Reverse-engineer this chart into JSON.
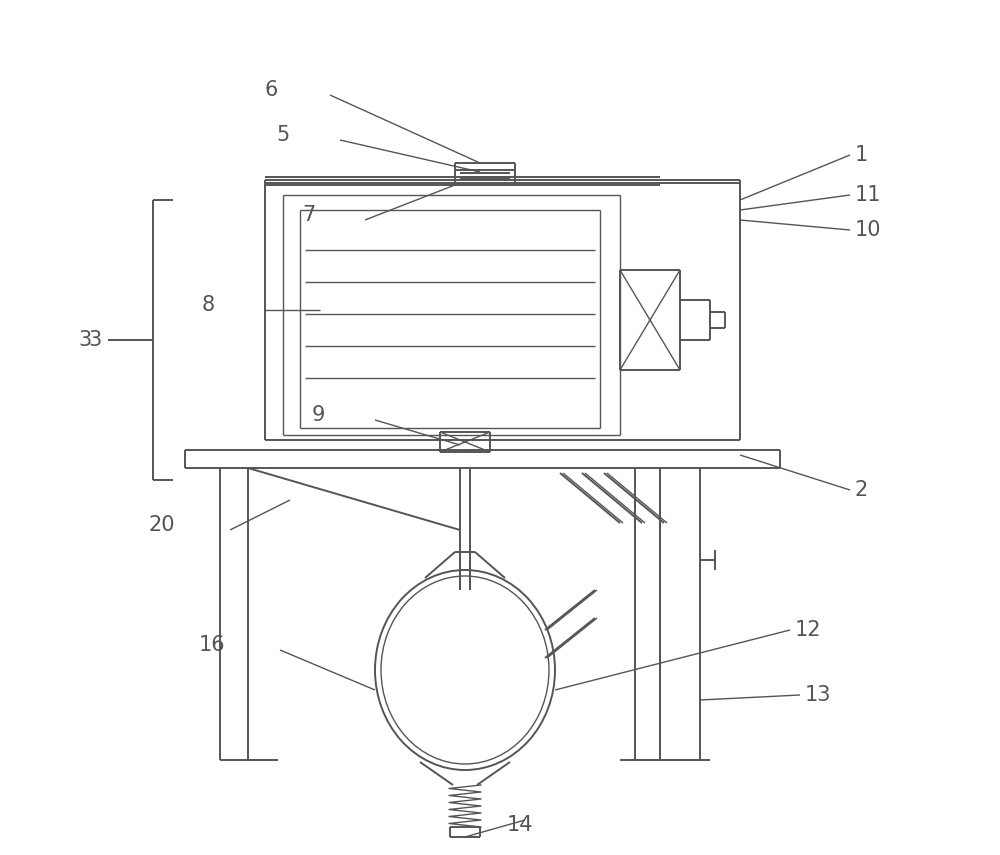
{
  "bg_color": "#ffffff",
  "line_color": "#555555",
  "lw": 1.4,
  "lw_thin": 1.0,
  "fs": 15
}
